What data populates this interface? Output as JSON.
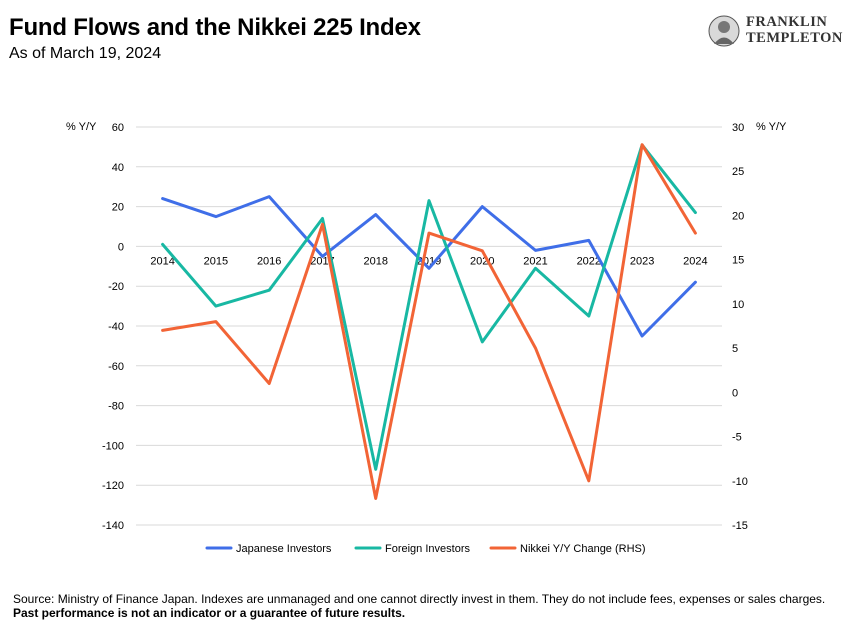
{
  "header": {
    "title": "Fund Flows and the Nikkei 225 Index",
    "subtitle": "As of March 19, 2024"
  },
  "logo": {
    "line1": "FRANKLIN",
    "line2": "TEMPLETON",
    "icon": "franklin-portrait-seal",
    "color": "#333333"
  },
  "footer": {
    "text": "Source: Ministry of Finance Japan. Indexes are unmanaged and one cannot directly invest in them. They do not include fees, expenses or sales charges. ",
    "bold_text": "Past performance is not an indicator or a guarantee of future results."
  },
  "chart_data": {
    "type": "line",
    "title": "Fund Flows and the Nikkei 225 Index",
    "y_left_label": "% Y/Y",
    "y_right_label": "% Y/Y",
    "ylim_left": [
      -140,
      60
    ],
    "ylim_right": [
      -15,
      30
    ],
    "yticks_left": [
      60,
      40,
      20,
      0,
      -20,
      -40,
      -60,
      -80,
      -100,
      -120,
      -140
    ],
    "yticks_right": [
      30,
      25,
      20,
      15,
      10,
      5,
      0,
      -5,
      -10,
      -15
    ],
    "grid": true,
    "legend_position": "bottom",
    "categories": [
      "2014",
      "2015",
      "2016",
      "2017",
      "2018",
      "2019",
      "2020",
      "2021",
      "2022",
      "2023",
      "2024"
    ],
    "series": [
      {
        "name": "Japanese  Investors",
        "axis": "left",
        "color": "#3f6ee8",
        "values": [
          24,
          15,
          25,
          -5,
          16,
          -11,
          20,
          -2,
          3,
          -45,
          -18
        ]
      },
      {
        "name": "Foreign Investors",
        "axis": "left",
        "color": "#18b8a3",
        "values": [
          1,
          -30,
          -22,
          14,
          -112,
          23,
          -48,
          -11,
          -35,
          51,
          17
        ]
      },
      {
        "name": "Nikkei Y/Y Change (RHS)",
        "axis": "right",
        "color": "#f26436",
        "values": [
          7,
          8,
          1,
          19,
          -12,
          18,
          16,
          5,
          -10,
          28,
          18
        ]
      }
    ]
  }
}
